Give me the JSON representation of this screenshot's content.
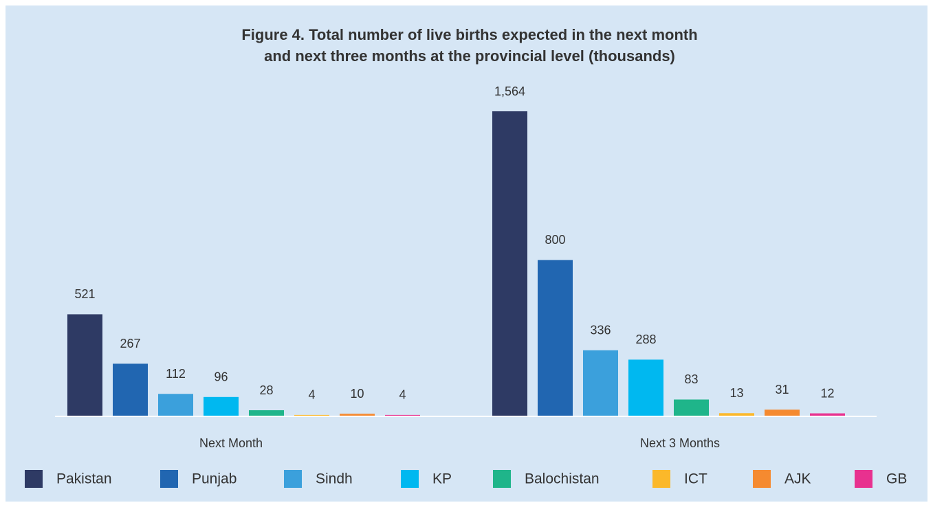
{
  "chart_data": {
    "type": "bar",
    "title": "Figure 4. Total number of live births expected in the next month and next three months at the provincial level (thousands)",
    "categories": [
      "Next Month",
      "Next 3 Months"
    ],
    "series": [
      {
        "name": "Pakistan",
        "color": "#2e3a64",
        "values": [
          521,
          1564
        ],
        "value_labels": [
          "521",
          "1,564"
        ]
      },
      {
        "name": "Punjab",
        "color": "#2166b1",
        "values": [
          267,
          800
        ]
      },
      {
        "name": "Sindh",
        "color": "#3ba0dc",
        "values": [
          112,
          336
        ]
      },
      {
        "name": "KP",
        "color": "#00b8f0",
        "values": [
          96,
          288
        ]
      },
      {
        "name": "Balochistan",
        "color": "#1fb58a",
        "values": [
          28,
          83
        ]
      },
      {
        "name": "ICT",
        "color": "#fbb82a",
        "values": [
          4,
          13
        ]
      },
      {
        "name": "AJK",
        "color": "#f58a30",
        "values": [
          10,
          31
        ]
      },
      {
        "name": "GB",
        "color": "#e8318f",
        "values": [
          4,
          12
        ]
      }
    ]
  }
}
